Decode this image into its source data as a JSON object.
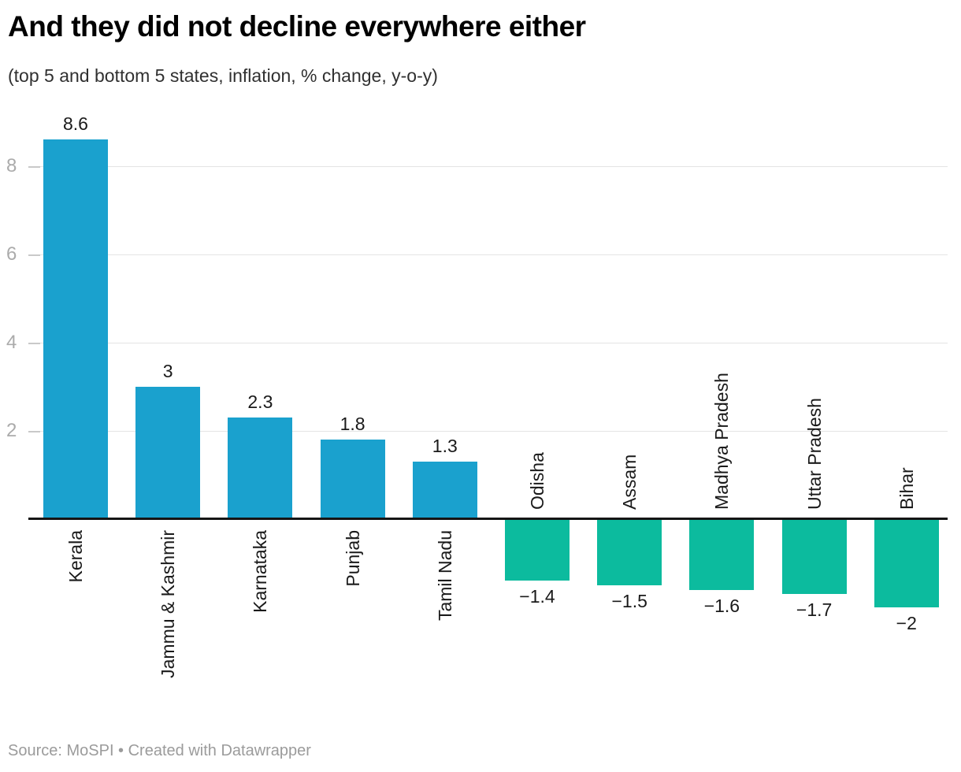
{
  "chart_data": {
    "type": "bar",
    "title": "And they did not decline everywhere either",
    "subtitle": "(top 5 and bottom 5 states, inflation, % change, y-o-y)",
    "categories": [
      "Kerala",
      "Jammu & Kashmir",
      "Karnataka",
      "Punjab",
      "Tamil Nadu",
      "Odisha",
      "Assam",
      "Madhya Pradesh",
      "Uttar Pradesh",
      "Bihar"
    ],
    "values": [
      8.6,
      3,
      2.3,
      1.8,
      1.3,
      -1.4,
      -1.5,
      -1.6,
      -1.7,
      -2
    ],
    "value_labels": [
      "8.6",
      "3",
      "2.3",
      "1.8",
      "1.3",
      "−1.4",
      "−1.5",
      "−1.6",
      "−1.7",
      "−2"
    ],
    "series_note": "top 5 states positive (blue), bottom 5 states negative (teal)",
    "xlabel": "",
    "ylabel": "",
    "y_ticks": [
      2,
      4,
      6,
      8
    ],
    "y_tick_labels": [
      "2",
      "4",
      "6",
      "8"
    ],
    "ylim": [
      -2.3,
      9.2
    ],
    "grid": true,
    "legend": "none"
  },
  "colors": {
    "positive_bar": "#1aa1ce",
    "negative_bar": "#0cbb9e",
    "gridline": "#e4e4e4",
    "tick_dash": "#c9c9c9",
    "axis_label": "#ababab",
    "baseline": "#151515",
    "text": "#1a1a1a"
  },
  "footer": {
    "source_label": "Source: MoSPI • Created with Datawrapper"
  }
}
